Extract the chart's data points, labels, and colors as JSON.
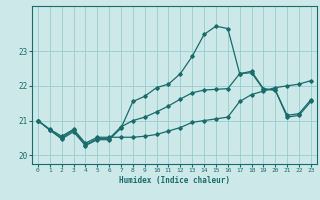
{
  "xlabel": "Humidex (Indice chaleur)",
  "bg_color": "#cce8e8",
  "grid_color": "#99cccc",
  "line_color": "#1a6b6b",
  "xlim": [
    -0.5,
    23.5
  ],
  "ylim": [
    19.75,
    24.3
  ],
  "xticks": [
    0,
    1,
    2,
    3,
    4,
    5,
    6,
    7,
    8,
    9,
    10,
    11,
    12,
    13,
    14,
    15,
    16,
    17,
    18,
    19,
    20,
    21,
    22,
    23
  ],
  "yticks": [
    20,
    21,
    22,
    23
  ],
  "line1_x": [
    0,
    1,
    2,
    3,
    4,
    5,
    6,
    7,
    8,
    9,
    10,
    11,
    12,
    13,
    14,
    15,
    16,
    17,
    18,
    19,
    20,
    21,
    22,
    23
  ],
  "line1_y": [
    21.0,
    20.75,
    20.55,
    20.75,
    20.35,
    20.52,
    20.52,
    20.52,
    20.52,
    20.55,
    20.6,
    20.7,
    20.8,
    20.95,
    21.0,
    21.05,
    21.1,
    21.55,
    21.75,
    21.85,
    21.95,
    22.0,
    22.05,
    22.15
  ],
  "line2_x": [
    0,
    1,
    2,
    3,
    4,
    5,
    6,
    7,
    8,
    9,
    10,
    11,
    12,
    13,
    14,
    15,
    16,
    17,
    18,
    19,
    20,
    21,
    22,
    23
  ],
  "line2_y": [
    21.0,
    20.73,
    20.5,
    20.73,
    20.3,
    20.48,
    20.48,
    20.82,
    21.0,
    21.1,
    21.25,
    21.42,
    21.62,
    21.8,
    21.88,
    21.9,
    21.92,
    22.35,
    22.42,
    21.92,
    21.88,
    21.15,
    21.2,
    21.6
  ],
  "line3_x": [
    0,
    1,
    2,
    3,
    4,
    5,
    6,
    7,
    8,
    9,
    10,
    11,
    12,
    13,
    14,
    15,
    16,
    17,
    18,
    19,
    20,
    21,
    22,
    23
  ],
  "line3_y": [
    21.0,
    20.73,
    20.47,
    20.68,
    20.28,
    20.45,
    20.45,
    20.78,
    21.55,
    21.7,
    21.95,
    22.05,
    22.35,
    22.85,
    23.48,
    23.72,
    23.65,
    22.35,
    22.38,
    21.9,
    21.88,
    21.1,
    21.15,
    21.55
  ]
}
